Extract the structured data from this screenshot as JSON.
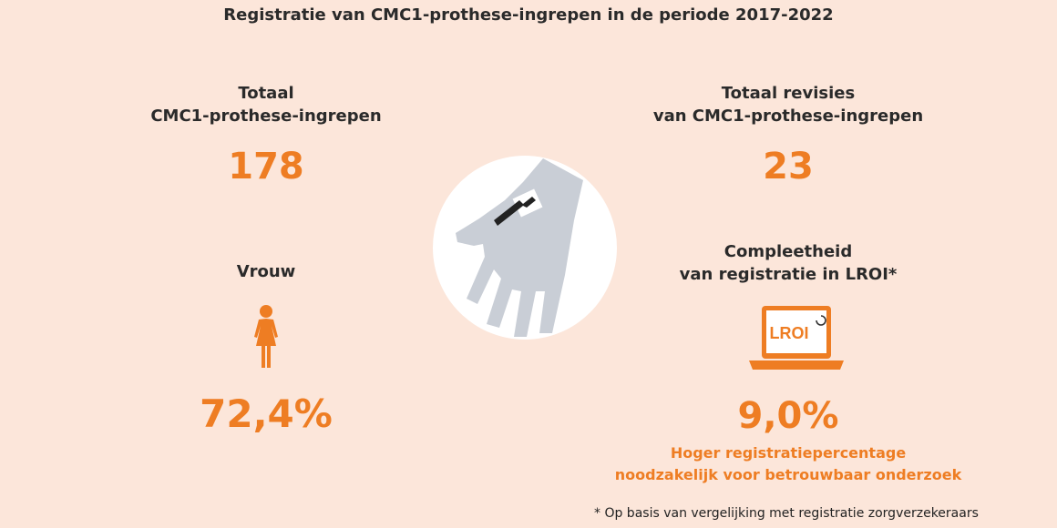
{
  "title": "Registratie van CMC1-prothese-ingrepen in de periode 2017-2022",
  "left": {
    "total_label_line1": "Totaal",
    "total_label_line2": "CMC1-prothese-ingrepen",
    "total_value": "178",
    "woman_label": "Vrouw",
    "woman_value": "72,4%"
  },
  "right": {
    "revisions_label_line1": "Totaal revisies",
    "revisions_label_line2": "van CMC1-prothese-ingrepen",
    "revisions_value": "23",
    "completeness_label_line1": "Compleetheid",
    "completeness_label_line2": "van registratie in LROI*",
    "laptop_logo_text": "LROI",
    "completeness_value": "9,0%",
    "note_line1": "Hoger registratiepercentage",
    "note_line2": "noodzakelijk voor betrouwbaar onderzoek"
  },
  "footnote": "* Op basis van vergelijking met registratie zorgverzekeraars",
  "colors": {
    "background": "#fce6da",
    "accent": "#ee7d23",
    "circle": "#ffffff",
    "hand": "#c9ced6"
  },
  "icons": [
    "hand-prosthesis-icon",
    "woman-icon",
    "laptop-lroi-icon"
  ]
}
